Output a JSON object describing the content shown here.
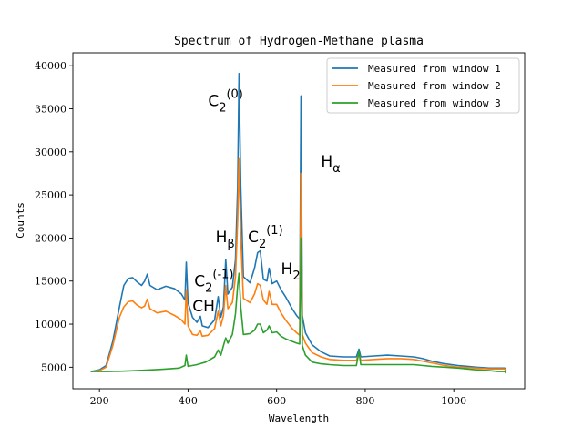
{
  "chart_data": {
    "type": "line",
    "title": "Spectrum of Hydrogen-Methane plasma",
    "xlabel": "Wavelength",
    "ylabel": "Counts",
    "xlim": [
      140,
      1160
    ],
    "ylim": [
      2500,
      41500
    ],
    "xticks": [
      200,
      400,
      600,
      800,
      1000
    ],
    "yticks": [
      5000,
      10000,
      15000,
      20000,
      25000,
      30000,
      35000,
      40000
    ],
    "grid": false,
    "legend_position": "top-right",
    "series": [
      {
        "name": "Measured from window 1",
        "color": "#1f77b4",
        "points": [
          [
            180,
            4500
          ],
          [
            200,
            4700
          ],
          [
            215,
            5200
          ],
          [
            230,
            8000
          ],
          [
            245,
            12000
          ],
          [
            255,
            14500
          ],
          [
            265,
            15300
          ],
          [
            275,
            15400
          ],
          [
            285,
            14900
          ],
          [
            295,
            14500
          ],
          [
            302,
            15000
          ],
          [
            308,
            15800
          ],
          [
            314,
            14500
          ],
          [
            330,
            14000
          ],
          [
            350,
            14400
          ],
          [
            370,
            14100
          ],
          [
            385,
            13500
          ],
          [
            393,
            12800
          ],
          [
            396,
            17200
          ],
          [
            400,
            12500
          ],
          [
            410,
            10800
          ],
          [
            420,
            10200
          ],
          [
            428,
            10900
          ],
          [
            432,
            9800
          ],
          [
            445,
            9600
          ],
          [
            460,
            10500
          ],
          [
            468,
            13200
          ],
          [
            474,
            10800
          ],
          [
            480,
            12000
          ],
          [
            485,
            17500
          ],
          [
            490,
            13500
          ],
          [
            500,
            14300
          ],
          [
            507,
            17500
          ],
          [
            512,
            26000
          ],
          [
            515,
            39100
          ],
          [
            519,
            26000
          ],
          [
            525,
            15500
          ],
          [
            540,
            14800
          ],
          [
            550,
            16500
          ],
          [
            557,
            18300
          ],
          [
            563,
            18500
          ],
          [
            570,
            15200
          ],
          [
            578,
            15000
          ],
          [
            583,
            16500
          ],
          [
            590,
            14700
          ],
          [
            600,
            15000
          ],
          [
            610,
            14000
          ],
          [
            620,
            13200
          ],
          [
            635,
            11800
          ],
          [
            645,
            11000
          ],
          [
            652,
            10600
          ],
          [
            655,
            36500
          ],
          [
            658,
            11000
          ],
          [
            665,
            9000
          ],
          [
            680,
            7600
          ],
          [
            700,
            6800
          ],
          [
            720,
            6300
          ],
          [
            750,
            6200
          ],
          [
            780,
            6200
          ],
          [
            786,
            7100
          ],
          [
            790,
            6200
          ],
          [
            820,
            6300
          ],
          [
            850,
            6400
          ],
          [
            880,
            6300
          ],
          [
            910,
            6200
          ],
          [
            930,
            6000
          ],
          [
            950,
            5700
          ],
          [
            980,
            5400
          ],
          [
            1010,
            5200
          ],
          [
            1050,
            5000
          ],
          [
            1080,
            4900
          ],
          [
            1100,
            4900
          ],
          [
            1115,
            4900
          ],
          [
            1118,
            4600
          ]
        ]
      },
      {
        "name": "Measured from window 2",
        "color": "#ff7f0e",
        "points": [
          [
            180,
            4500
          ],
          [
            200,
            4600
          ],
          [
            215,
            5000
          ],
          [
            230,
            7500
          ],
          [
            245,
            10800
          ],
          [
            255,
            12000
          ],
          [
            265,
            12600
          ],
          [
            275,
            12700
          ],
          [
            285,
            12200
          ],
          [
            295,
            11900
          ],
          [
            302,
            12100
          ],
          [
            308,
            12900
          ],
          [
            314,
            11800
          ],
          [
            330,
            11300
          ],
          [
            350,
            11500
          ],
          [
            370,
            11000
          ],
          [
            385,
            10500
          ],
          [
            393,
            10000
          ],
          [
            396,
            14000
          ],
          [
            400,
            9800
          ],
          [
            410,
            8800
          ],
          [
            420,
            8700
          ],
          [
            428,
            9200
          ],
          [
            432,
            8600
          ],
          [
            445,
            8700
          ],
          [
            460,
            9500
          ],
          [
            468,
            11500
          ],
          [
            474,
            9800
          ],
          [
            480,
            11000
          ],
          [
            485,
            14500
          ],
          [
            490,
            11800
          ],
          [
            500,
            12500
          ],
          [
            507,
            15500
          ],
          [
            512,
            22000
          ],
          [
            515,
            29300
          ],
          [
            519,
            20000
          ],
          [
            525,
            13000
          ],
          [
            540,
            12500
          ],
          [
            550,
            13500
          ],
          [
            557,
            14700
          ],
          [
            563,
            14500
          ],
          [
            570,
            12800
          ],
          [
            578,
            12300
          ],
          [
            583,
            13800
          ],
          [
            590,
            12300
          ],
          [
            600,
            12300
          ],
          [
            610,
            11300
          ],
          [
            620,
            10500
          ],
          [
            635,
            9500
          ],
          [
            645,
            9000
          ],
          [
            652,
            8700
          ],
          [
            655,
            27500
          ],
          [
            658,
            8800
          ],
          [
            665,
            7800
          ],
          [
            680,
            6700
          ],
          [
            700,
            6200
          ],
          [
            720,
            5900
          ],
          [
            750,
            5800
          ],
          [
            780,
            5800
          ],
          [
            786,
            6600
          ],
          [
            790,
            5800
          ],
          [
            820,
            5900
          ],
          [
            850,
            6000
          ],
          [
            880,
            6000
          ],
          [
            910,
            5900
          ],
          [
            930,
            5700
          ],
          [
            950,
            5500
          ],
          [
            980,
            5200
          ],
          [
            1010,
            5000
          ],
          [
            1050,
            4900
          ],
          [
            1080,
            4800
          ],
          [
            1100,
            4800
          ],
          [
            1115,
            4800
          ],
          [
            1118,
            4500
          ]
        ]
      },
      {
        "name": "Measured from window 3",
        "color": "#2ca02c",
        "points": [
          [
            180,
            4500
          ],
          [
            220,
            4500
          ],
          [
            260,
            4550
          ],
          [
            300,
            4650
          ],
          [
            340,
            4750
          ],
          [
            380,
            4900
          ],
          [
            393,
            5200
          ],
          [
            396,
            6400
          ],
          [
            400,
            5100
          ],
          [
            420,
            5300
          ],
          [
            440,
            5600
          ],
          [
            460,
            6200
          ],
          [
            468,
            7000
          ],
          [
            474,
            6400
          ],
          [
            480,
            7500
          ],
          [
            485,
            8400
          ],
          [
            490,
            7800
          ],
          [
            500,
            8800
          ],
          [
            507,
            11200
          ],
          [
            512,
            14500
          ],
          [
            515,
            15900
          ],
          [
            519,
            12000
          ],
          [
            525,
            8800
          ],
          [
            540,
            8900
          ],
          [
            550,
            9300
          ],
          [
            557,
            10000
          ],
          [
            563,
            10000
          ],
          [
            570,
            9000
          ],
          [
            578,
            9300
          ],
          [
            583,
            9800
          ],
          [
            590,
            9000
          ],
          [
            600,
            9100
          ],
          [
            610,
            8600
          ],
          [
            620,
            8300
          ],
          [
            635,
            8000
          ],
          [
            645,
            7800
          ],
          [
            652,
            7700
          ],
          [
            655,
            20000
          ],
          [
            658,
            7500
          ],
          [
            665,
            6400
          ],
          [
            680,
            5600
          ],
          [
            700,
            5400
          ],
          [
            720,
            5300
          ],
          [
            750,
            5200
          ],
          [
            780,
            5200
          ],
          [
            786,
            6800
          ],
          [
            790,
            5300
          ],
          [
            820,
            5300
          ],
          [
            850,
            5300
          ],
          [
            880,
            5300
          ],
          [
            910,
            5300
          ],
          [
            930,
            5200
          ],
          [
            950,
            5100
          ],
          [
            980,
            5000
          ],
          [
            1010,
            4900
          ],
          [
            1050,
            4700
          ],
          [
            1080,
            4600
          ],
          [
            1100,
            4500
          ],
          [
            1115,
            4500
          ],
          [
            1118,
            4300
          ]
        ]
      }
    ],
    "annotations": [
      {
        "base": "C",
        "sub": "2",
        "sup": "(0)",
        "x": 445,
        "y": 35300
      },
      {
        "base": "H",
        "sub": "α",
        "sup": "",
        "x": 700,
        "y": 28300
      },
      {
        "base": "H",
        "sub": "β",
        "sup": "",
        "x": 462,
        "y": 19500
      },
      {
        "base": "C",
        "sub": "2",
        "sup": "(1)",
        "x": 535,
        "y": 19500
      },
      {
        "base": "C",
        "sub": "2",
        "sup": "(-1)",
        "x": 414,
        "y": 14400
      },
      {
        "base": "CH",
        "sub": "",
        "sup": "",
        "x": 410,
        "y": 11500
      },
      {
        "base": "H",
        "sub": "2",
        "sup": "",
        "x": 610,
        "y": 15800
      }
    ]
  }
}
